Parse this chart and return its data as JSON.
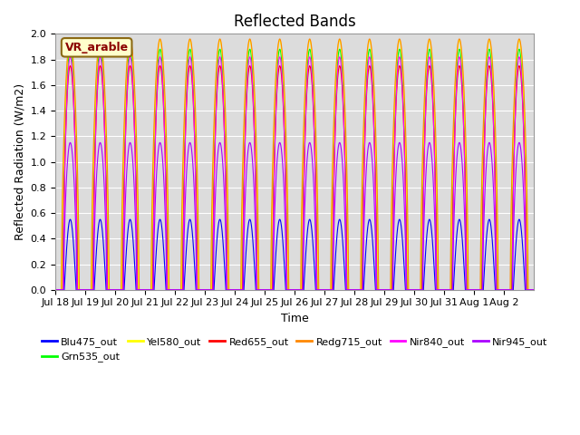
{
  "title": "Reflected Bands",
  "xlabel": "Time",
  "ylabel": "Reflected Radiation (W/m2)",
  "ylim": [
    0,
    2.0
  ],
  "yticks": [
    0.0,
    0.2,
    0.4,
    0.6,
    0.8,
    1.0,
    1.2,
    1.4,
    1.6,
    1.8,
    2.0
  ],
  "annotation": "VR_arable",
  "series": [
    {
      "label": "Blu475_out",
      "color": "#0000FF",
      "amplitude": 0.55,
      "rise": 0.3,
      "fall": 0.7,
      "shape": "sine"
    },
    {
      "label": "Grn535_out",
      "color": "#00FF00",
      "amplitude": 1.88,
      "rise": 0.25,
      "fall": 0.75,
      "shape": "sharp"
    },
    {
      "label": "Yel580_out",
      "color": "#FFFF00",
      "amplitude": 1.95,
      "rise": 0.22,
      "fall": 0.78,
      "shape": "sharp"
    },
    {
      "label": "Red655_out",
      "color": "#FF0000",
      "amplitude": 1.75,
      "rise": 0.26,
      "fall": 0.74,
      "shape": "sharp"
    },
    {
      "label": "Redg715_out",
      "color": "#FF8800",
      "amplitude": 1.96,
      "rise": 0.2,
      "fall": 0.8,
      "shape": "sharp"
    },
    {
      "label": "Nir840_out",
      "color": "#FF00FF",
      "amplitude": 1.82,
      "rise": 0.27,
      "fall": 0.73,
      "shape": "sharp"
    },
    {
      "label": "Nir945_out",
      "color": "#AA00FF",
      "amplitude": 1.15,
      "rise": 0.28,
      "fall": 0.72,
      "shape": "sharp"
    }
  ],
  "n_days": 16,
  "points_per_day": 288,
  "title_fontsize": 12,
  "label_fontsize": 9,
  "tick_fontsize": 8,
  "background_color": "#DCDCDC",
  "grid_color": "#FFFFFF",
  "fig_color": "#FFFFFF",
  "tick_labels": [
    "Jul 18",
    "Jul 19",
    "Jul 20",
    "Jul 21",
    "Jul 22",
    "Jul 23",
    "Jul 24",
    "Jul 25",
    "Jul 26",
    "Jul 27",
    "Jul 28",
    "Jul 29",
    "Jul 30",
    "Jul 31",
    "Aug 1",
    "Aug 2"
  ],
  "legend_order": [
    "Blu475_out",
    "Grn535_out",
    "Yel580_out",
    "Red655_out",
    "Redg715_out",
    "Nir840_out",
    "Nir945_out"
  ]
}
